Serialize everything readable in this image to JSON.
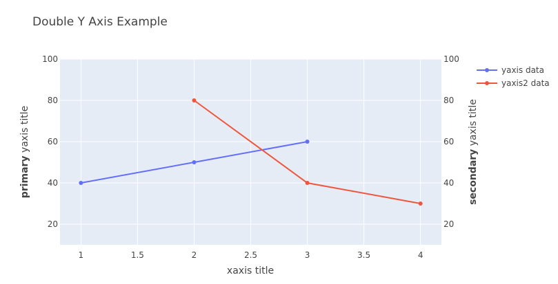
{
  "chart_data": {
    "type": "line",
    "title": "Double Y Axis Example",
    "xlabel": "xaxis title",
    "ylabel_bold": "primary",
    "ylabel_rest": " yaxis title",
    "y2label_bold": "secondary",
    "y2label_rest": " yaxis title",
    "xlim": [
      0.815,
      4.185
    ],
    "ylim": [
      10,
      100
    ],
    "y2lim": [
      10,
      100
    ],
    "x_ticks": [
      1,
      1.5,
      2,
      2.5,
      3,
      3.5,
      4
    ],
    "x_tick_labels": [
      "1",
      "1.5",
      "2",
      "2.5",
      "3",
      "3.5",
      "4"
    ],
    "y_ticks": [
      20,
      40,
      60,
      80,
      100
    ],
    "y_tick_labels": [
      "20",
      "40",
      "60",
      "80",
      "100"
    ],
    "y2_ticks": [
      20,
      40,
      60,
      80,
      100
    ],
    "y2_tick_labels": [
      "20",
      "40",
      "60",
      "80",
      "100"
    ],
    "grid": true,
    "legend_position": "top-right",
    "series": [
      {
        "name": "yaxis data",
        "axis": "y",
        "color": "#636efa",
        "x": [
          1,
          2,
          3
        ],
        "y": [
          40,
          50,
          60
        ]
      },
      {
        "name": "yaxis2 data",
        "axis": "y2",
        "color": "#ef553b",
        "x": [
          2,
          3,
          4
        ],
        "y": [
          80,
          40,
          30
        ]
      }
    ],
    "colors": {
      "plot_bg": "#e5ecf6",
      "grid": "#ffffff",
      "text": "#444444"
    }
  }
}
